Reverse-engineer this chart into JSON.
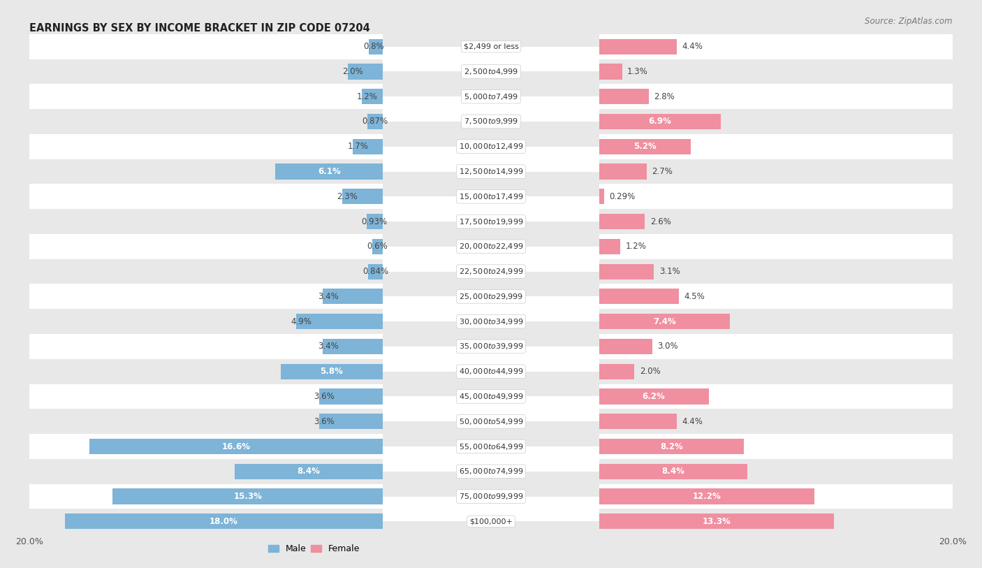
{
  "title": "EARNINGS BY SEX BY INCOME BRACKET IN ZIP CODE 07204",
  "source": "Source: ZipAtlas.com",
  "categories": [
    "$2,499 or less",
    "$2,500 to $4,999",
    "$5,000 to $7,499",
    "$7,500 to $9,999",
    "$10,000 to $12,499",
    "$12,500 to $14,999",
    "$15,000 to $17,499",
    "$17,500 to $19,999",
    "$20,000 to $22,499",
    "$22,500 to $24,999",
    "$25,000 to $29,999",
    "$30,000 to $34,999",
    "$35,000 to $39,999",
    "$40,000 to $44,999",
    "$45,000 to $49,999",
    "$50,000 to $54,999",
    "$55,000 to $64,999",
    "$65,000 to $74,999",
    "$75,000 to $99,999",
    "$100,000+"
  ],
  "male_values": [
    0.8,
    2.0,
    1.2,
    0.87,
    1.7,
    6.1,
    2.3,
    0.93,
    0.6,
    0.84,
    3.4,
    4.9,
    3.4,
    5.8,
    3.6,
    3.6,
    16.6,
    8.4,
    15.3,
    18.0
  ],
  "female_values": [
    4.4,
    1.3,
    2.8,
    6.9,
    5.2,
    2.7,
    0.29,
    2.6,
    1.2,
    3.1,
    4.5,
    7.4,
    3.0,
    2.0,
    6.2,
    4.4,
    8.2,
    8.4,
    12.2,
    13.3
  ],
  "male_color": "#7db4d8",
  "female_color": "#f08fa0",
  "male_label": "Male",
  "female_label": "Female",
  "xlim": 20.0,
  "background_color": "#e8e8e8",
  "row_color_even": "#ffffff",
  "row_color_odd": "#e8e8e8",
  "title_fontsize": 10.5,
  "source_fontsize": 8.5,
  "tick_fontsize": 9,
  "label_fontsize": 8.5,
  "cat_fontsize": 8,
  "bar_height": 0.62,
  "label_threshold": 5.0
}
